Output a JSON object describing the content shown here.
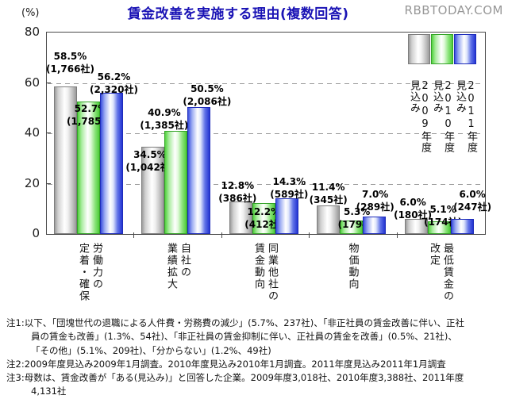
{
  "header": {
    "logo": "RBBTODAY.COM"
  },
  "chart_data": {
    "type": "bar",
    "title": "賃金改善を実施する理由(複数回答)",
    "unit_label": "(%)",
    "ylim": [
      0,
      80
    ],
    "yticks": [
      0,
      20,
      40,
      60,
      80
    ],
    "grid": "horizontal dashed lines at 20, 40, 60",
    "legend_position": "top-right inside plot, vertical text",
    "categories": [
      "労働力の定着・確保",
      "自社の業績拡大",
      "同業他社の賃金動向",
      "物価動向",
      "最低賃金の改定"
    ],
    "category_lines": [
      [
        "労働力の",
        "定着・確保"
      ],
      [
        "自社の",
        "業績拡大"
      ],
      [
        "同業他社の",
        "賃金動向"
      ],
      [
        "物価動向"
      ],
      [
        "最低賃金の",
        "改定"
      ]
    ],
    "series": [
      {
        "name": "2009年度見込み",
        "name_lines": [
          "2009年度",
          "見込み"
        ],
        "color": "#a9a9a9",
        "values": [
          58.5,
          34.5,
          12.8,
          11.4,
          6.0
        ],
        "counts": [
          "(1,766社)",
          "(1,042社)",
          "(386社)",
          "(345社)",
          "(180社)"
        ]
      },
      {
        "name": "2010年度見込み",
        "name_lines": [
          "2010年度",
          "見込み"
        ],
        "color": "#55d53f",
        "values": [
          52.7,
          40.9,
          12.2,
          5.3,
          5.1
        ],
        "counts": [
          "(1,785社)",
          "(1,385社)",
          "(412社)",
          "(179社)",
          "(174社)"
        ]
      },
      {
        "name": "2011年度見込み",
        "name_lines": [
          "2011年度",
          "見込み"
        ],
        "color": "#2b3bd6",
        "values": [
          56.2,
          50.5,
          14.3,
          7.0,
          6.0
        ],
        "counts": [
          "(2,320社)",
          "(2,086社)",
          "(589社)",
          "(289社)",
          "(247社)"
        ]
      }
    ]
  },
  "notes": [
    {
      "text": "注1:以下、「団塊世代の退職による人件費・労務費の減少」(5.7%、237社)、「非正社員の賃金改善に伴い、正社員の賃金も改善」(1.3%、54社)、「非正社員の賃金抑制に伴い、正社員の賃金を改善」(0.5%、21社)、「その他」(5.1%、209社)、「分からない」(1.2%、49社)"
    },
    {
      "text": "注2:2009年度見込み2009年1月調査。2010年度見込み2010年1月調査。2011年度見込み2011年1月調査"
    },
    {
      "text": "注3:母数は、賃金改善が「ある(見込み)」と回答した企業。2009年度3,018社、2010年度3,388社、2011年度4,131社"
    }
  ],
  "colors": {
    "title": "#1a13b5",
    "logo": "#979797",
    "bar_2009": "#a9a9a9",
    "bar_2010": "#55d53f",
    "bar_2011": "#2b3bd6"
  }
}
